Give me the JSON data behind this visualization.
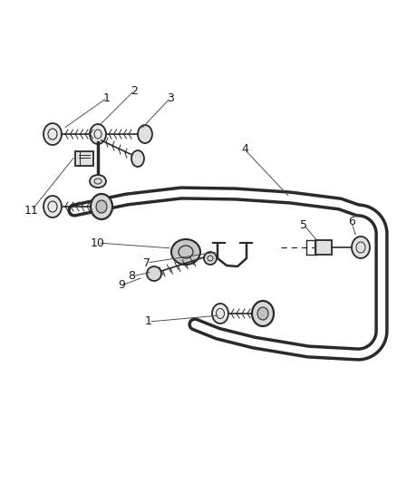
{
  "bg_color": "#ffffff",
  "line_color": "#2a2a2a",
  "label_color": "#1a1a1a",
  "fig_width": 4.38,
  "fig_height": 5.33,
  "dpi": 100,
  "bar_lw": 2.0,
  "part_lw": 1.3
}
